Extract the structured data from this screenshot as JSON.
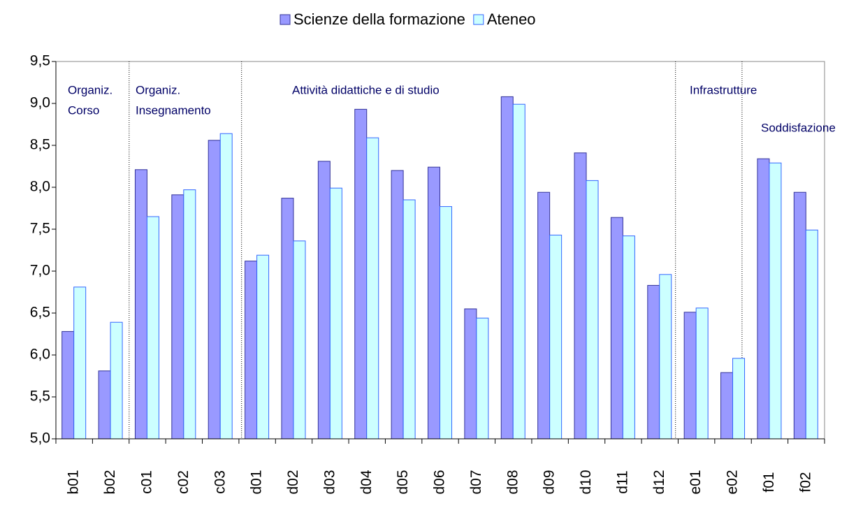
{
  "chart_data": {
    "type": "bar",
    "categories": [
      "b01",
      "b02",
      "c01",
      "c02",
      "c03",
      "d01",
      "d02",
      "d03",
      "d04",
      "d05",
      "d06",
      "d07",
      "d08",
      "d09",
      "d10",
      "d11",
      "d12",
      "e01",
      "e02",
      "f01",
      "f02"
    ],
    "series": [
      {
        "name": "Scienze della formazione",
        "color": "#9999ff",
        "values": [
          6.28,
          5.81,
          8.21,
          7.91,
          8.56,
          7.12,
          7.87,
          8.31,
          8.93,
          8.2,
          8.24,
          6.55,
          9.08,
          7.94,
          8.41,
          7.64,
          6.83,
          6.51,
          5.79,
          8.34,
          7.94
        ]
      },
      {
        "name": "Ateneo",
        "color": "#ccffff",
        "values": [
          6.81,
          6.39,
          7.65,
          7.97,
          8.64,
          7.19,
          7.36,
          7.99,
          8.59,
          7.85,
          7.77,
          6.44,
          8.99,
          7.43,
          8.08,
          7.42,
          6.96,
          6.56,
          5.96,
          8.29,
          7.49
        ]
      }
    ],
    "ylim": [
      5.0,
      9.5
    ],
    "yticks": [
      {
        "value": 5.0,
        "label": "5,0"
      },
      {
        "value": 5.5,
        "label": "5,5"
      },
      {
        "value": 6.0,
        "label": "6,0"
      },
      {
        "value": 6.5,
        "label": "6,5"
      },
      {
        "value": 7.0,
        "label": "7,0"
      },
      {
        "value": 7.5,
        "label": "7,5"
      },
      {
        "value": 8.0,
        "label": "8,0"
      },
      {
        "value": 8.5,
        "label": "8,5"
      },
      {
        "value": 9.0,
        "label": "9,0"
      },
      {
        "value": 9.5,
        "label": "9,5"
      }
    ],
    "legend": "top",
    "annotations": [
      [
        "Organiz.",
        "Corso"
      ],
      [
        "Organiz.",
        "Insegnamento"
      ],
      [
        "Attività didattiche e di studio"
      ],
      [
        "Infrastrutture"
      ],
      [
        "Soddisfazione"
      ]
    ]
  }
}
